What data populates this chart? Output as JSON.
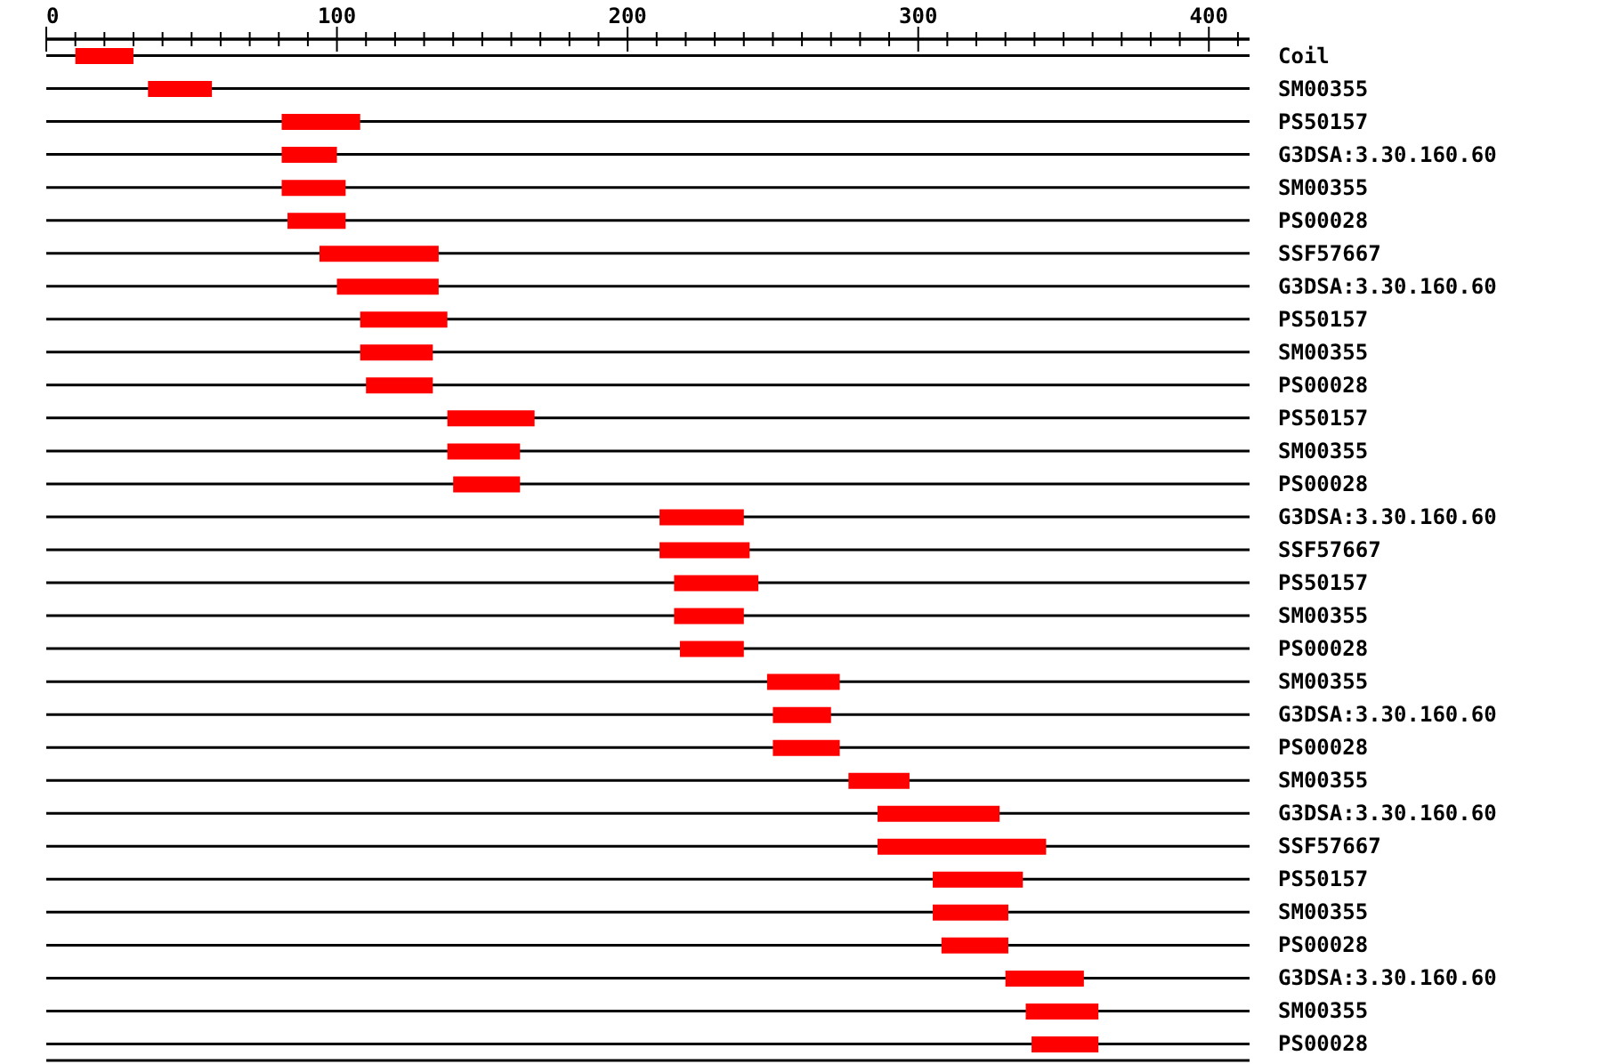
{
  "chart_data": {
    "type": "bar",
    "orientation": "horizontal",
    "categories": [
      "Coil",
      "SM00355",
      "PS50157",
      "G3DSA:3.30.160.60",
      "SM00355",
      "PS00028",
      "SSF57667",
      "G3DSA:3.30.160.60",
      "PS50157",
      "SM00355",
      "PS00028",
      "PS50157",
      "SM00355",
      "PS00028",
      "G3DSA:3.30.160.60",
      "SSF57667",
      "PS50157",
      "SM00355",
      "PS00028",
      "SM00355",
      "G3DSA:3.30.160.60",
      "PS00028",
      "SM00355",
      "G3DSA:3.30.160.60",
      "SSF57667",
      "PS50157",
      "SM00355",
      "PS00028",
      "G3DSA:3.30.160.60",
      "SM00355",
      "PS00028"
    ],
    "base": [
      10,
      35,
      81,
      81,
      81,
      83,
      94,
      100,
      108,
      108,
      110,
      138,
      138,
      140,
      211,
      211,
      216,
      216,
      218,
      248,
      250,
      250,
      276,
      286,
      286,
      305,
      305,
      308,
      330,
      337,
      339
    ],
    "values": [
      20,
      22,
      27,
      19,
      22,
      20,
      41,
      35,
      30,
      25,
      23,
      30,
      25,
      23,
      29,
      31,
      29,
      24,
      22,
      25,
      20,
      23,
      21,
      42,
      58,
      31,
      26,
      23,
      27,
      25,
      23
    ],
    "color": "#ff0000",
    "xlim": [
      0,
      414
    ],
    "xticks": [
      0,
      {
        "value": 10,
        "label": null
      },
      {
        "value": 20,
        "label": null
      },
      {
        "value": 30,
        "label": null
      },
      {
        "value": 40,
        "label": null
      },
      {
        "value": 50,
        "label": null
      },
      {
        "value": 60,
        "label": null
      },
      {
        "value": 70,
        "label": null
      },
      {
        "value": 80,
        "label": null
      },
      {
        "value": 90,
        "label": null
      },
      100,
      {
        "value": 110,
        "label": null
      },
      {
        "value": 120,
        "label": null
      },
      {
        "value": 130,
        "label": null
      },
      {
        "value": 140,
        "label": null
      },
      {
        "value": 150,
        "label": null
      },
      {
        "value": 160,
        "label": null
      },
      {
        "value": 170,
        "label": null
      },
      {
        "value": 180,
        "label": null
      },
      {
        "value": 190,
        "label": null
      },
      200,
      {
        "value": 210,
        "label": null
      },
      {
        "value": 220,
        "label": null
      },
      {
        "value": 230,
        "label": null
      },
      {
        "value": 240,
        "label": null
      },
      {
        "value": 250,
        "label": null
      },
      {
        "value": 260,
        "label": null
      },
      {
        "value": 270,
        "label": null
      },
      {
        "value": 280,
        "label": null
      },
      {
        "value": 290,
        "label": null
      },
      300,
      {
        "value": 310,
        "label": null
      },
      {
        "value": 320,
        "label": null
      },
      {
        "value": 330,
        "label": null
      },
      {
        "value": 340,
        "label": null
      },
      {
        "value": 350,
        "label": null
      },
      {
        "value": 360,
        "label": null
      },
      {
        "value": 370,
        "label": null
      },
      {
        "value": 380,
        "label": null
      },
      {
        "value": 390,
        "label": null
      },
      400,
      {
        "value": 410,
        "label": null
      }
    ],
    "grid": "y"
  }
}
